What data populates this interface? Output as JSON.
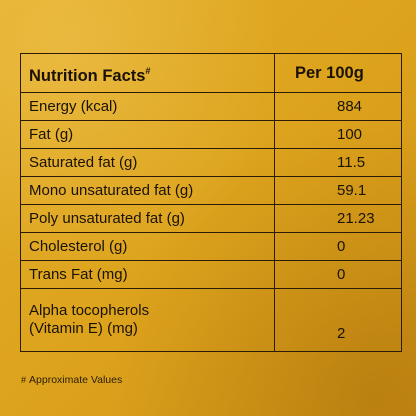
{
  "table": {
    "header": {
      "title": "Nutrition Facts",
      "title_mark": "#",
      "per": "Per 100g"
    },
    "rows": [
      {
        "name": "Energy (kcal)",
        "value": "884"
      },
      {
        "name": "Fat (g)",
        "value": "100"
      },
      {
        "name": "Saturated fat (g)",
        "value": "11.5"
      },
      {
        "name": "Mono unsaturated fat (g)",
        "value": "59.1"
      },
      {
        "name": "Poly unsaturated fat (g)",
        "value": "21.23"
      },
      {
        "name": "Cholesterol (g)",
        "value": "0"
      },
      {
        "name": "Trans Fat (mg)",
        "value": "0"
      },
      {
        "name_line1": "Alpha tocopherols",
        "name_line2": "(Vitamin E) (mg)",
        "value": "2"
      }
    ]
  },
  "footnote": {
    "mark": "#",
    "text": "Approximate Values"
  }
}
